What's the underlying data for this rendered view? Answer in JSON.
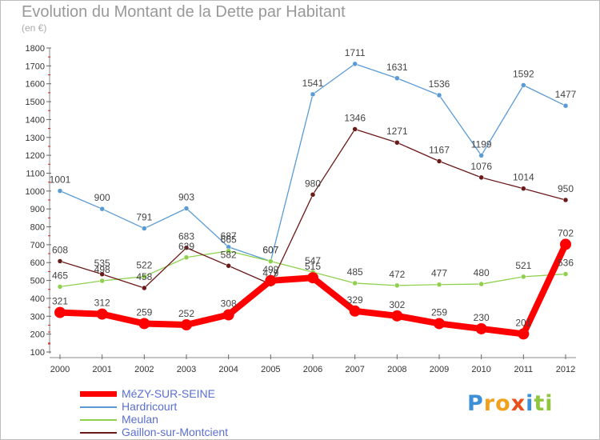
{
  "chart_data": {
    "type": "line",
    "title": "Evolution du Montant de la Dette par Habitant",
    "subtitle": "(en €)",
    "x": [
      "2000",
      "2001",
      "2002",
      "2003",
      "2004",
      "2005",
      "2006",
      "2007",
      "2008",
      "2009",
      "2010",
      "2011",
      "2012"
    ],
    "ylim": [
      100,
      1800
    ],
    "yticks": [
      100,
      200,
      300,
      400,
      500,
      600,
      700,
      800,
      900,
      1000,
      1100,
      1200,
      1300,
      1400,
      1500,
      1600,
      1700,
      1800
    ],
    "grid": false,
    "legend_position": "bottom-left",
    "series": [
      {
        "name": "MéZY-SUR-SEINE",
        "color": "#ff0000",
        "values": [
          321,
          312,
          259,
          252,
          308,
          499,
          515,
          329,
          302,
          259,
          230,
          201,
          702
        ]
      },
      {
        "name": "Hardricourt",
        "color": "#5b9bd5",
        "values": [
          1001,
          900,
          791,
          903,
          687,
          607,
          1541,
          1711,
          1631,
          1536,
          1199,
          1592,
          1477
        ]
      },
      {
        "name": "Meulan",
        "color": "#8fd14f",
        "values": [
          465,
          498,
          522,
          629,
          665,
          607,
          547,
          485,
          472,
          477,
          480,
          521,
          536
        ]
      },
      {
        "name": "Gaillon-sur-Montcient",
        "color": "#6b1a1a",
        "values": [
          608,
          535,
          458,
          683,
          582,
          479,
          980,
          1346,
          1271,
          1167,
          1076,
          1014,
          950
        ]
      }
    ]
  },
  "logo": {
    "text": "Proxiti",
    "letters": [
      {
        "ch": "P",
        "color": "#3d8fd6"
      },
      {
        "ch": "r",
        "color": "#f0a21e"
      },
      {
        "ch": "o",
        "color": "#f0a21e"
      },
      {
        "ch": "x",
        "color": "#e8501e"
      },
      {
        "ch": "i",
        "color": "#3d8fd6"
      },
      {
        "ch": "t",
        "color": "#8fc63d"
      },
      {
        "ch": "i",
        "color": "#8fc63d"
      }
    ]
  }
}
